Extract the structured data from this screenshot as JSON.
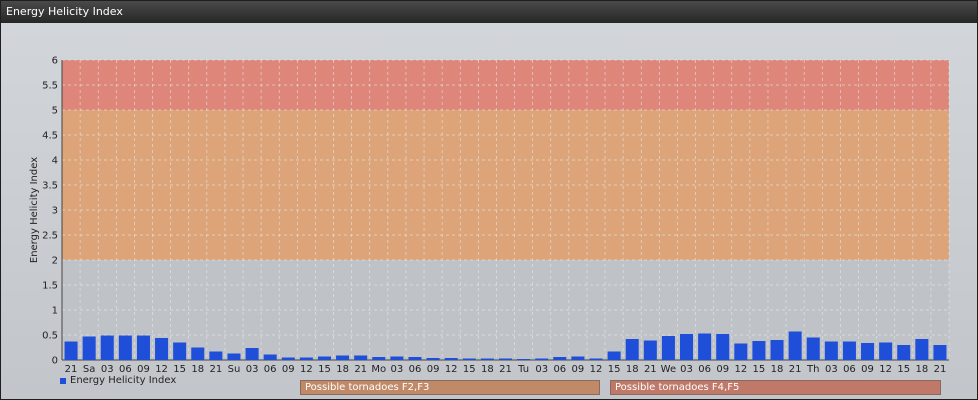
{
  "window": {
    "title": "Energy Helicity Index"
  },
  "legend": {
    "label": "Energy Helicity Index",
    "color": "#1f4fd8"
  },
  "zones": [
    {
      "label": "Possible tornadoes F2,F3",
      "from": 2,
      "to": 5,
      "color": "#e0a070"
    },
    {
      "label": "Possible tornadoes F4,F5",
      "from": 5,
      "to": 6,
      "color": "#e08070"
    }
  ],
  "chart_data": {
    "type": "bar",
    "ylabel": "Energy Helicity Index",
    "ylim": [
      0,
      6
    ],
    "yticks": [
      "0",
      "0.5",
      "1",
      "1.5",
      "2",
      "2.5",
      "3",
      "3.5",
      "4",
      "4.5",
      "5",
      "5.5",
      "6"
    ],
    "grid": true,
    "bar_color": "#1f4fd8",
    "categories": [
      "21",
      "Sa",
      "03",
      "06",
      "09",
      "12",
      "15",
      "18",
      "21",
      "Su",
      "03",
      "06",
      "09",
      "12",
      "15",
      "18",
      "21",
      "Mo",
      "03",
      "06",
      "09",
      "12",
      "15",
      "18",
      "21",
      "Tu",
      "03",
      "06",
      "09",
      "12",
      "15",
      "18",
      "21",
      "We",
      "03",
      "06",
      "09",
      "12",
      "15",
      "18",
      "21",
      "Th",
      "03",
      "06",
      "09",
      "12",
      "15",
      "18",
      "21"
    ],
    "values": [
      0.37,
      0.47,
      0.49,
      0.49,
      0.49,
      0.44,
      0.35,
      0.25,
      0.17,
      0.13,
      0.24,
      0.11,
      0.05,
      0.05,
      0.07,
      0.09,
      0.09,
      0.06,
      0.07,
      0.06,
      0.04,
      0.04,
      0.03,
      0.03,
      0.03,
      0.02,
      0.03,
      0.06,
      0.07,
      0.03,
      0.17,
      0.42,
      0.39,
      0.48,
      0.52,
      0.53,
      0.52,
      0.33,
      0.38,
      0.4,
      0.57,
      0.45,
      0.37,
      0.37,
      0.34,
      0.35,
      0.3,
      0.42,
      0.3
    ],
    "series": [
      {
        "name": "Energy Helicity Index"
      }
    ]
  }
}
